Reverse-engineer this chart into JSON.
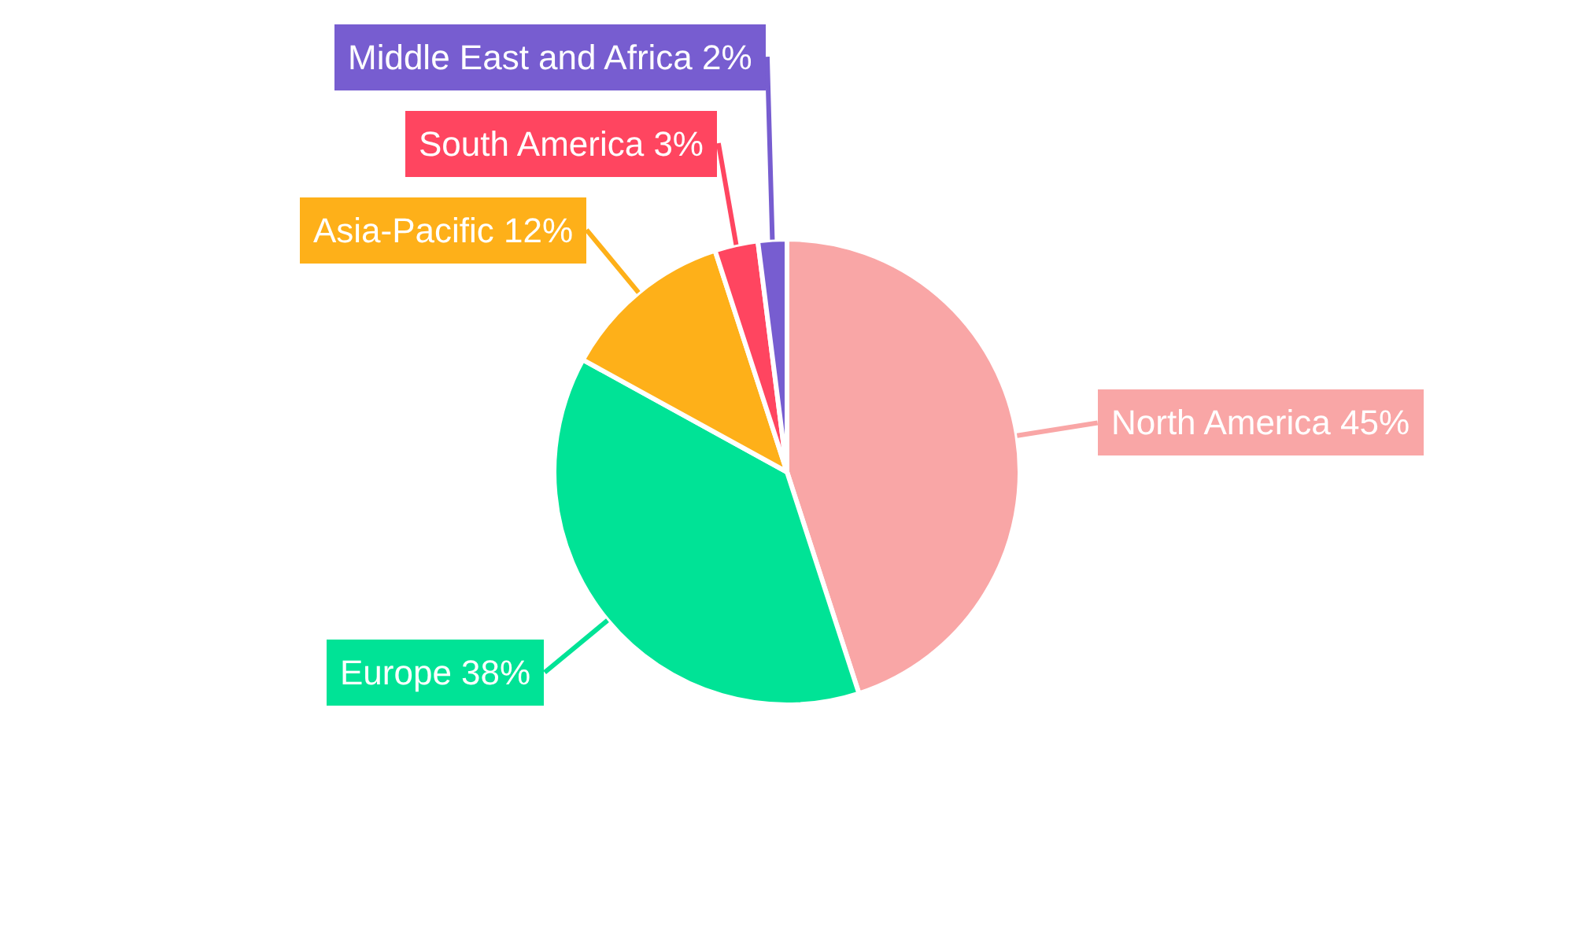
{
  "chart_data": {
    "type": "pie",
    "categories": [
      "North America",
      "Europe",
      "Asia-Pacific",
      "South America",
      "Middle East and Africa"
    ],
    "values": [
      45,
      38,
      12,
      3,
      2
    ],
    "value_labels": [
      "45%",
      "38%",
      "12%",
      "3%",
      "2%"
    ],
    "colors": [
      "#f9a6a6",
      "#00e396",
      "#feb019",
      "#ff4560",
      "#775dd0"
    ],
    "legend": false
  }
}
